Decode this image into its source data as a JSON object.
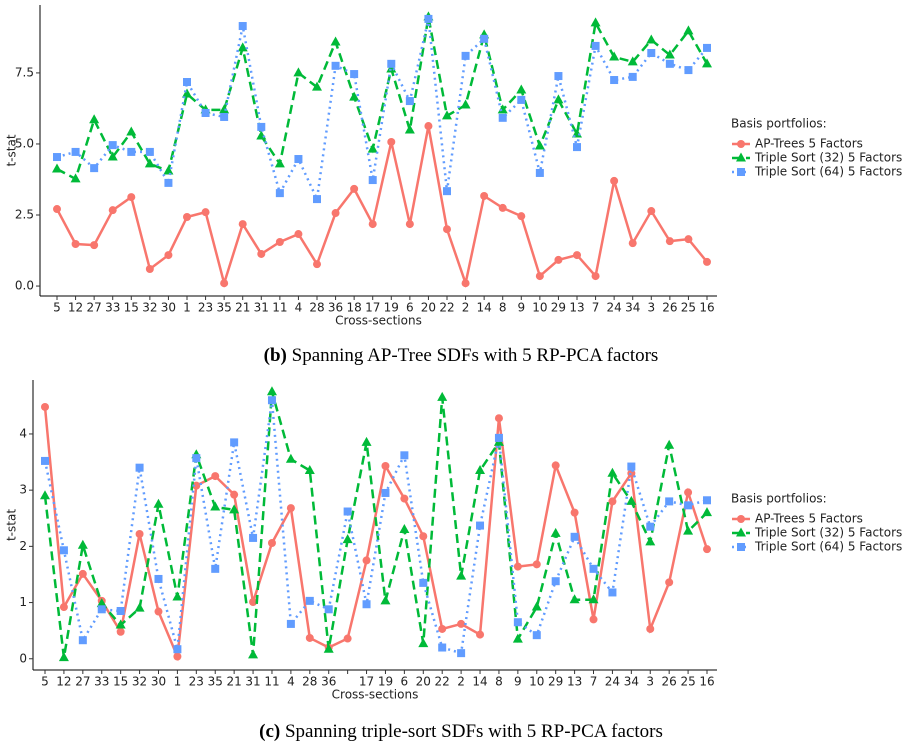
{
  "chart_data": [
    {
      "type": "line",
      "figure_label": "(b)",
      "caption": "Spanning AP-Tree SDFs with 5 RP-PCA factors",
      "x_label": "Cross-sections",
      "y_label": "t-stat",
      "legend_title": "Basis portfolios:",
      "legend": "right",
      "categories": [
        "5",
        "12",
        "27",
        "33",
        "15",
        "32",
        "30",
        "1",
        "23",
        "35",
        "21",
        "31",
        "11",
        "4",
        "28",
        "36",
        "18",
        "17",
        "19",
        "6",
        "20",
        "22",
        "2",
        "14",
        "8",
        "9",
        "10",
        "29",
        "13",
        "7",
        "24",
        "34",
        "3",
        "26",
        "25",
        "16"
      ],
      "ylim": [
        -0.35,
        9.89
      ],
      "yticks": [
        {
          "value": 0,
          "label": "0.0"
        },
        {
          "value": 2.5,
          "label": "2.5"
        },
        {
          "value": 5,
          "label": "5.0"
        },
        {
          "value": 7.5,
          "label": "7.5"
        }
      ],
      "series": [
        {
          "name": "AP-Trees 5 Factors",
          "color": "#F8766D",
          "marker": "circle",
          "dash": "solid",
          "values": [
            2.71,
            1.48,
            1.44,
            2.67,
            3.13,
            0.6,
            1.09,
            2.43,
            2.6,
            0.1,
            2.18,
            1.13,
            1.55,
            1.83,
            0.77,
            2.57,
            3.42,
            2.18,
            5.07,
            2.18,
            5.63,
            2.0,
            0.1,
            3.17,
            2.75,
            2.46,
            0.35,
            0.92,
            1.09,
            0.35,
            3.7,
            1.51,
            2.64,
            1.58,
            1.65,
            0.85
          ]
        },
        {
          "name": "Triple Sort (32) 5 Factors",
          "color": "#00BA38",
          "marker": "triangle",
          "dash": "dashed",
          "values": [
            4.12,
            3.77,
            5.85,
            4.54,
            5.42,
            4.3,
            4.05,
            6.76,
            6.2,
            6.2,
            8.38,
            5.28,
            4.3,
            7.5,
            7.0,
            8.59,
            6.65,
            4.82,
            7.64,
            5.49,
            9.47,
            5.99,
            6.37,
            8.84,
            6.2,
            6.9,
            4.93,
            6.55,
            5.35,
            9.26,
            8.06,
            7.89,
            8.66,
            8.13,
            8.98,
            7.82
          ]
        },
        {
          "name": "Triple Sort (64) 5 Factors",
          "color": "#619CFF",
          "marker": "square",
          "dash": "dotted",
          "values": [
            4.54,
            4.72,
            4.15,
            4.96,
            4.72,
            4.72,
            3.63,
            7.18,
            6.09,
            5.95,
            9.15,
            5.6,
            3.27,
            4.47,
            3.06,
            7.75,
            7.46,
            3.73,
            7.82,
            6.51,
            9.4,
            3.34,
            8.1,
            8.7,
            5.92,
            6.55,
            3.98,
            7.39,
            4.89,
            8.45,
            7.25,
            7.36,
            8.2,
            7.82,
            7.6,
            8.38
          ]
        }
      ]
    },
    {
      "type": "line",
      "figure_label": "(c)",
      "caption": "Spanning triple-sort SDFs with 5 RP-PCA factors",
      "x_label": "Cross-sections",
      "y_label": "t-stat",
      "legend_title": "Basis portfolios:",
      "legend": "right",
      "categories": [
        "5",
        "12",
        "27",
        "33",
        "15",
        "32",
        "30",
        "1",
        "23",
        "35",
        "21",
        "31",
        "11",
        "4",
        "28",
        "36",
        null,
        "17",
        "19",
        "6",
        "20",
        "22",
        "2",
        "14",
        "8",
        "9",
        "10",
        "29",
        "13",
        "7",
        "24",
        "34",
        "3",
        "26",
        "25",
        "16"
      ],
      "ylim": [
        -0.2,
        4.96
      ],
      "yticks": [
        0,
        1,
        2,
        3,
        4
      ],
      "series": [
        {
          "name": "AP-Trees 5 Factors",
          "color": "#F8766D",
          "marker": "circle",
          "dash": "solid",
          "values": [
            4.48,
            0.92,
            1.51,
            1.03,
            0.48,
            2.22,
            0.84,
            0.04,
            3.08,
            3.25,
            2.92,
            1.01,
            2.06,
            2.68,
            0.37,
            0.2,
            0.36,
            1.75,
            3.43,
            2.85,
            2.18,
            0.53,
            0.62,
            0.43,
            4.28,
            1.64,
            1.68,
            3.44,
            2.6,
            0.7,
            2.8,
            3.3,
            0.53,
            1.36,
            2.96,
            1.95
          ]
        },
        {
          "name": "Triple Sort (32) 5 Factors",
          "color": "#00BA38",
          "marker": "triangle",
          "dash": "dashed",
          "values": [
            2.9,
            0.02,
            2.02,
            0.98,
            0.6,
            0.9,
            2.75,
            1.1,
            3.63,
            2.7,
            2.65,
            0.07,
            4.75,
            3.55,
            3.35,
            0.17,
            2.12,
            3.85,
            1.03,
            2.3,
            0.27,
            4.65,
            1.47,
            3.35,
            3.85,
            0.35,
            0.92,
            2.23,
            1.05,
            1.05,
            3.3,
            2.8,
            2.08,
            3.8,
            2.27,
            2.6
          ]
        },
        {
          "name": "Triple Sort (64) 5 Factors",
          "color": "#619CFF",
          "marker": "square",
          "dash": "dotted",
          "values": [
            3.52,
            1.93,
            0.33,
            0.88,
            0.85,
            3.4,
            1.42,
            0.17,
            3.57,
            1.6,
            3.85,
            2.15,
            4.6,
            0.62,
            1.03,
            0.88,
            2.62,
            0.97,
            2.95,
            3.62,
            1.35,
            0.2,
            0.1,
            2.37,
            3.93,
            0.65,
            0.42,
            1.38,
            2.17,
            1.6,
            1.18,
            3.42,
            2.35,
            2.8,
            2.73,
            2.82
          ]
        }
      ]
    }
  ]
}
